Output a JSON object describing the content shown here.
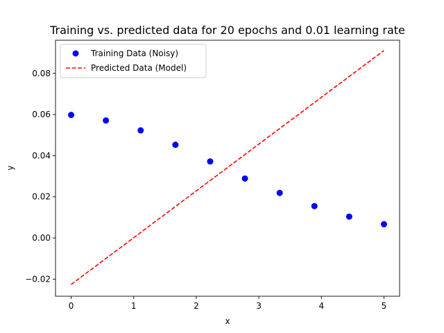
{
  "chart_data": {
    "type": "scatter",
    "title": "Training vs. predicted data for 20 epochs and 0.01 learning rate",
    "xlabel": "x",
    "ylabel": "y",
    "xlim": [
      -0.25,
      5.25
    ],
    "ylim": [
      -0.0283,
      0.0961
    ],
    "xticks": [
      0,
      1,
      2,
      3,
      4,
      5
    ],
    "xtick_labels": [
      "0",
      "1",
      "2",
      "3",
      "4",
      "5"
    ],
    "yticks": [
      -0.02,
      0.0,
      0.02,
      0.04,
      0.06,
      0.08
    ],
    "ytick_labels": [
      "−0.02",
      "0.00",
      "0.02",
      "0.04",
      "0.06",
      "0.08"
    ],
    "grid": false,
    "legend_position": "upper-left",
    "series": [
      {
        "name": "Training Data (Noisy)",
        "kind": "scatter",
        "color": "#0000ff",
        "x": [
          0,
          0.5556,
          1.1111,
          1.6667,
          2.2222,
          2.7778,
          3.3333,
          3.8889,
          4.4444,
          5.0
        ],
        "y": [
          0.0598,
          0.0571,
          0.0523,
          0.0453,
          0.0372,
          0.0289,
          0.0219,
          0.0155,
          0.0104,
          0.0067
        ]
      },
      {
        "name": "Predicted Data (Model)",
        "kind": "line",
        "style": "dashed",
        "color": "#ff0000",
        "x": [
          0,
          5.0
        ],
        "y": [
          -0.0226,
          0.0911
        ]
      }
    ]
  }
}
